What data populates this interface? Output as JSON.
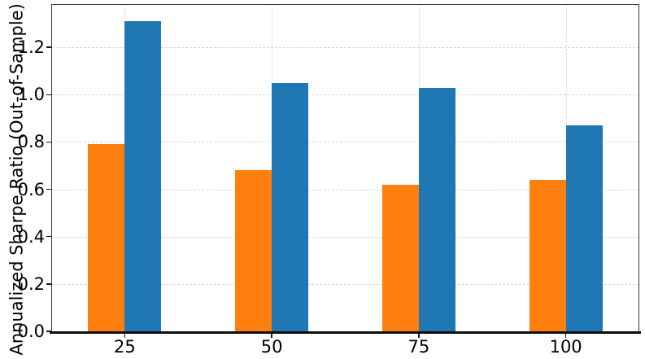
{
  "chart_data": {
    "type": "bar",
    "categories": [
      "25",
      "50",
      "75",
      "100"
    ],
    "series": [
      {
        "name": "orange-series",
        "color": "#ff7f0e",
        "values": [
          0.79,
          0.68,
          0.62,
          0.64
        ]
      },
      {
        "name": "blue-series",
        "color": "#1f77b4",
        "values": [
          1.31,
          1.05,
          1.03,
          0.87
        ]
      }
    ],
    "title": "",
    "xlabel": "",
    "ylabel": "Annualized Sharpe Ratio (Out-of-Sample)",
    "ylim": [
      0,
      1.383
    ],
    "yticks": [
      0.0,
      0.2,
      0.4,
      0.6,
      0.8,
      1.0,
      1.2
    ],
    "ytick_labels": [
      "0.0",
      "0.2",
      "0.4",
      "0.6",
      "0.8",
      "1.0",
      "1.2"
    ],
    "xtick_labels": [
      "25",
      "50",
      "75",
      "100"
    ],
    "grid": {
      "horizontal": true,
      "vertical": true,
      "style": "dashed",
      "color": "#d7d7d7"
    },
    "legend": null
  },
  "colors": {
    "background": "#ffffff",
    "spine": "#3a3a3a",
    "bottom_spine": "#0d0d0d",
    "tick_text": "#000000"
  }
}
